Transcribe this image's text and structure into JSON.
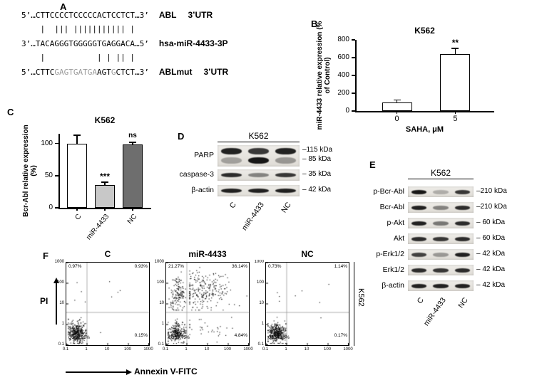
{
  "panels": {
    "a": "A",
    "b": "B",
    "c": "C",
    "d": "D",
    "e": "E",
    "f": "F"
  },
  "colors": {
    "bar_white": "#ffffff",
    "bar_light_gray": "#c8c8c8",
    "bar_dark_gray": "#6e6e6e",
    "blot_background": "#e8e5e0",
    "band_color": "#0d0d0d",
    "seq_gray": "#9b9b9b",
    "gate_gray": "#999999"
  },
  "panel_a": {
    "row1": {
      "seq": "5’…CTTCCCCTCCCCCACTCCTCT…3’",
      "name": "ABL",
      "region": "3’UTR"
    },
    "pipes1": "    |  ||| ||||||||||| |",
    "row2": {
      "seq": "3’…TACAGGGTGGGGGTGAGGACA…5’",
      "name": "hsa-miR-4433-3P"
    },
    "pipes2": "    |           | | || |",
    "row3": {
      "seq_segments": [
        {
          "t": "5’…CTTC",
          "gray": false
        },
        {
          "t": "GAGTGATGA",
          "gray": true
        },
        {
          "t": "AGT",
          "gray": false
        },
        {
          "t": "G",
          "gray": true
        },
        {
          "t": "CTCT…3’",
          "gray": false
        }
      ],
      "name": "ABLmut",
      "region": "3’UTR"
    }
  },
  "chart_data": [
    {
      "id": "B",
      "type": "bar",
      "title": "K562",
      "xlabel": "SAHA, μM",
      "ylabel": "miR-4433 relative expression (% of Control)",
      "categories": [
        "0",
        "5"
      ],
      "values": [
        100,
        640
      ],
      "errors": [
        25,
        65
      ],
      "significance": [
        "",
        "**"
      ],
      "ylim": [
        0,
        800
      ],
      "yticks": [
        0,
        200,
        400,
        600,
        800
      ],
      "bar_fill": [
        "#ffffff",
        "#ffffff"
      ]
    },
    {
      "id": "C",
      "type": "bar",
      "title": "K562",
      "xlabel": "",
      "ylabel": "Bcr-Abl relative expression (%)",
      "categories": [
        "C",
        "miR-4433",
        "NC"
      ],
      "values": [
        100,
        35,
        98
      ],
      "errors": [
        13,
        5,
        4
      ],
      "significance": [
        "",
        "***",
        "ns"
      ],
      "ylim": [
        0,
        115
      ],
      "yticks": [
        0,
        50,
        100
      ],
      "bar_fill": [
        "#ffffff",
        "#c8c8c8",
        "#6e6e6e"
      ]
    },
    {
      "id": "F",
      "type": "scatter",
      "subtype": "flow-cytometry-apoptosis",
      "xlabel": "Annexin V-FITC",
      "ylabel": "PI",
      "side_label": "K562",
      "axis_scale": "log",
      "axis_ticks": [
        "0.1",
        "1",
        "10",
        "100",
        "1000"
      ],
      "plots": [
        {
          "title": "C",
          "quadrants": {
            "upper_left": "0.97%",
            "upper_right": "0.93%",
            "lower_right": "0.15%",
            "lower_left": "Q3 97.95%"
          },
          "percents": {
            "ul": 0.97,
            "ur": 0.93,
            "lr": 0.15,
            "ll": 97.95
          }
        },
        {
          "title": "miR-4433",
          "quadrants": {
            "upper_left": "21.27%",
            "upper_right": "36.14%",
            "lower_right": "4.84%",
            "lower_left": "Q3 37.75%"
          },
          "percents": {
            "ul": 21.27,
            "ur": 36.14,
            "lr": 4.84,
            "ll": 37.75
          }
        },
        {
          "title": "NC",
          "quadrants": {
            "upper_left": "0.73%",
            "upper_right": "1.14%",
            "lower_right": "0.17%",
            "lower_left": "Q3 97.96%"
          },
          "percents": {
            "ul": 0.73,
            "ur": 1.14,
            "lr": 0.17,
            "ll": 97.96
          }
        }
      ]
    }
  ],
  "panel_d": {
    "title": "K562",
    "lanes": [
      "C",
      "miR-4433",
      "NC"
    ],
    "rows": [
      {
        "label": "PARP",
        "markers": [
          "–115 kDa",
          "– 85 kDa"
        ],
        "bands": [
          [
            0.9,
            0.8,
            0.9
          ],
          [
            0.3,
            0.95,
            0.35
          ]
        ]
      },
      {
        "label": "caspase-3",
        "markers": [
          "– 35 kDa"
        ],
        "bands": [
          [
            0.85,
            0.45,
            0.8
          ]
        ]
      },
      {
        "label": "β-actin",
        "markers": [
          "– 42 kDa"
        ],
        "bands": [
          [
            0.9,
            0.9,
            0.9
          ]
        ]
      }
    ]
  },
  "panel_e": {
    "title": "K562",
    "lanes": [
      "C",
      "miR-4433",
      "NC"
    ],
    "rows": [
      {
        "label": "p-Bcr-Abl",
        "markers": [
          "–210 kDa"
        ],
        "bands": [
          [
            0.95,
            0.25,
            0.8
          ]
        ]
      },
      {
        "label": "Bcr-Abl",
        "markers": [
          "–210 kDa"
        ],
        "bands": [
          [
            0.9,
            0.45,
            0.85
          ]
        ]
      },
      {
        "label": "p-Akt",
        "markers": [
          "– 60 kDa"
        ],
        "bands": [
          [
            0.9,
            0.5,
            0.85
          ]
        ]
      },
      {
        "label": "Akt",
        "markers": [
          "– 60 kDa"
        ],
        "bands": [
          [
            0.85,
            0.8,
            0.85
          ]
        ]
      },
      {
        "label": "p-Erk1/2",
        "markers": [
          "– 42 kDa"
        ],
        "bands": [
          [
            0.75,
            0.35,
            0.9
          ]
        ]
      },
      {
        "label": "Erk1/2",
        "markers": [
          "– 42 kDa"
        ],
        "bands": [
          [
            0.85,
            0.8,
            0.85
          ]
        ]
      },
      {
        "label": "β-actin",
        "markers": [
          "– 42 kDa"
        ],
        "bands": [
          [
            0.9,
            0.9,
            0.9
          ]
        ]
      }
    ]
  }
}
